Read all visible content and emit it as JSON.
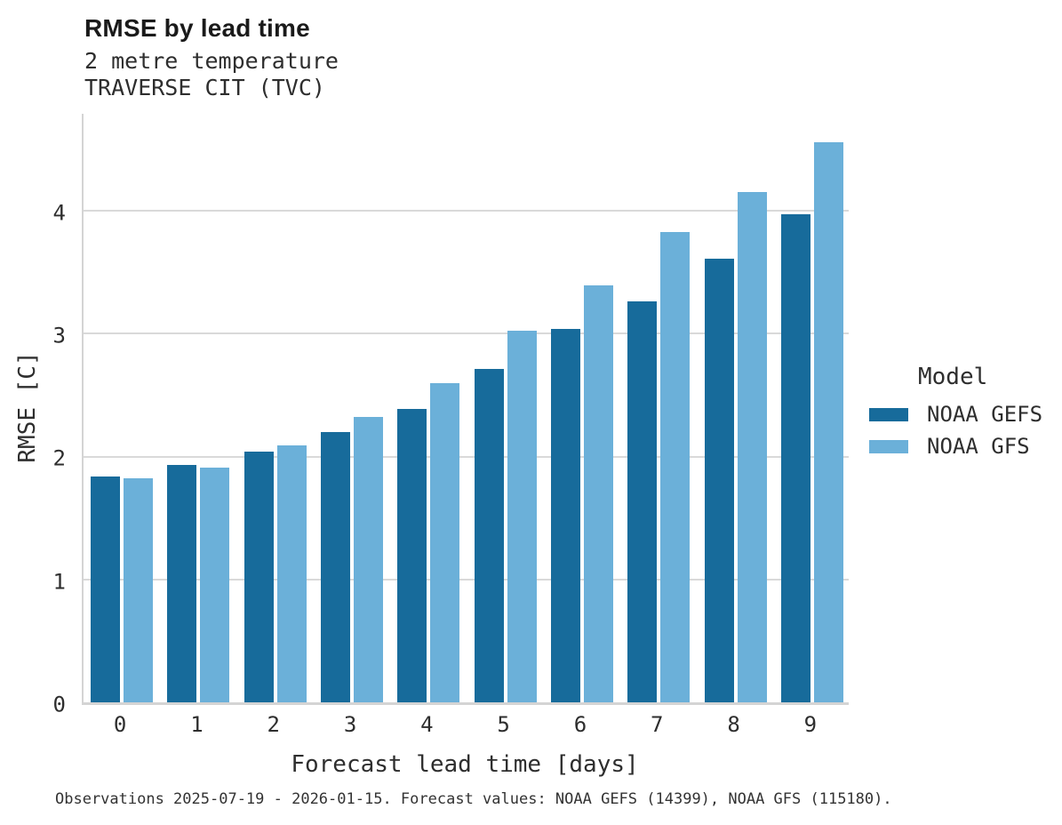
{
  "header": {
    "title": "RMSE by lead time",
    "subtitle_variable": "2 metre temperature",
    "subtitle_station": "TRAVERSE CIT (TVC)"
  },
  "legend": {
    "title": "Model",
    "entries": [
      "NOAA GEFS",
      "NOAA GFS"
    ]
  },
  "footer": {
    "text": "Observations 2025-07-19 - 2026-01-15. Forecast values: NOAA GEFS (14399), NOAA GFS (115180)."
  },
  "colors": {
    "noaa_gefs": "#176B9B",
    "noaa_gfs": "#6BB0D9",
    "gridline": "#D9D9D9",
    "axis_line": "#D4D4D4"
  },
  "chart_data": {
    "type": "bar",
    "title": "RMSE by lead time",
    "subtitle": [
      "2 metre temperature",
      "TRAVERSE CIT (TVC)"
    ],
    "xlabel": "Forecast lead time [days]",
    "ylabel": "RMSE [C]",
    "categories": [
      "0",
      "1",
      "2",
      "3",
      "4",
      "5",
      "6",
      "7",
      "8",
      "9"
    ],
    "series": [
      {
        "name": "NOAA GEFS",
        "color": "#176B9B",
        "values": [
          1.84,
          1.93,
          2.04,
          2.2,
          2.39,
          2.71,
          3.04,
          3.26,
          3.61,
          3.97
        ]
      },
      {
        "name": "NOAA GFS",
        "color": "#6BB0D9",
        "values": [
          1.82,
          1.91,
          2.09,
          2.32,
          2.6,
          3.02,
          3.39,
          3.83,
          4.15,
          4.56
        ]
      }
    ],
    "ylim": [
      0,
      4.81
    ],
    "yticks": [
      0,
      1,
      2,
      3,
      4
    ],
    "grid": "horizontal",
    "legend_position": "right",
    "legend_title": "Model"
  }
}
